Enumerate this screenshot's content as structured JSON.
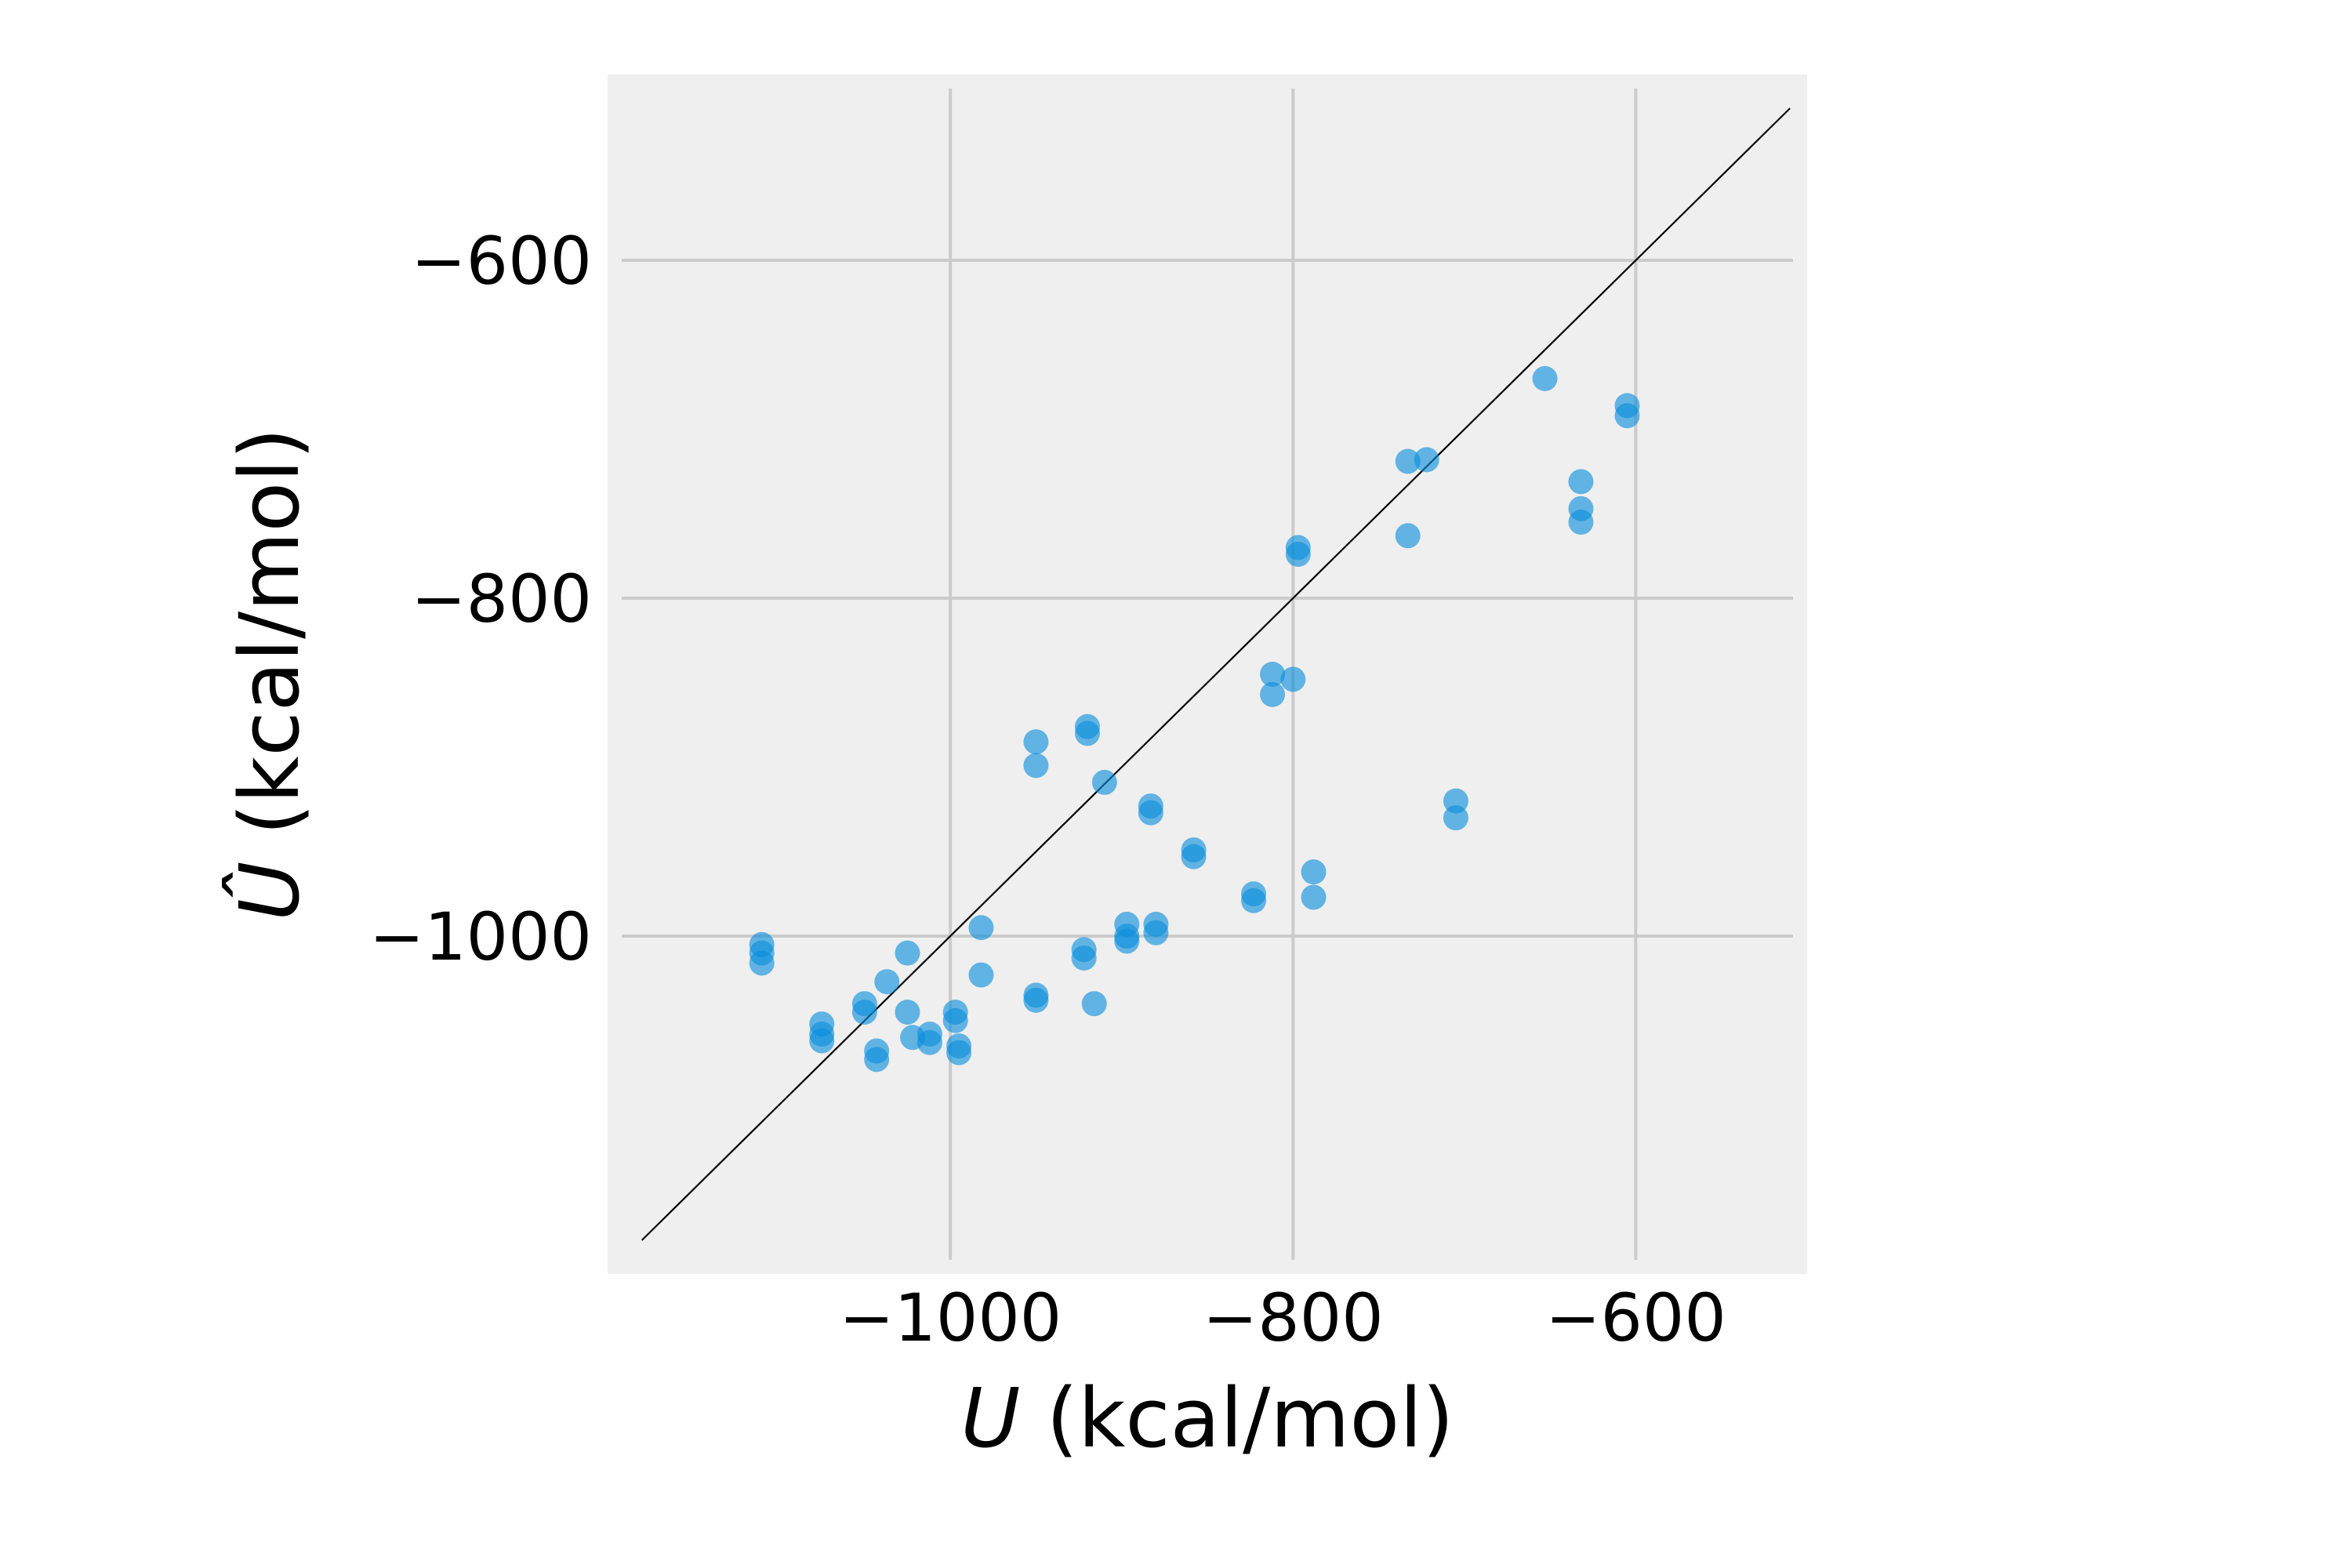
{
  "chart_data": {
    "type": "scatter",
    "xlabel_symbol": "U",
    "xlabel_unit": " (kcal/mol)",
    "ylabel_symbol": "Û",
    "ylabel_unit": " (kcal/mol)",
    "xlim": [
      -1200,
      -500
    ],
    "ylim": [
      -1200,
      -490
    ],
    "xticks": [
      -1000,
      -800,
      -600
    ],
    "yticks": [
      -1000,
      -800,
      -600
    ],
    "xtick_labels": [
      "−1000",
      "−800",
      "−600"
    ],
    "ytick_labels": [
      "−1000",
      "−800",
      "−600"
    ],
    "grid": true,
    "diagonal_reference_line": true,
    "colors": {
      "background": "#efefef",
      "grid": "#cbcbcb",
      "marker": "#0a8edb",
      "diagonal": "#000000"
    },
    "series": [
      {
        "points": [
          [
            -1110,
            -1005
          ],
          [
            -1110,
            -1010
          ],
          [
            -1110,
            -1016
          ],
          [
            -1075,
            -1052
          ],
          [
            -1075,
            -1058
          ],
          [
            -1075,
            -1062
          ],
          [
            -1050,
            -1040
          ],
          [
            -1050,
            -1045
          ],
          [
            -1043,
            -1068
          ],
          [
            -1043,
            -1073
          ],
          [
            -1037,
            -1027
          ],
          [
            -1025,
            -1010
          ],
          [
            -1025,
            -1045
          ],
          [
            -1022,
            -1060
          ],
          [
            -1012,
            -1058
          ],
          [
            -1012,
            -1063
          ],
          [
            -997,
            -1045
          ],
          [
            -997,
            -1050
          ],
          [
            -995,
            -1065
          ],
          [
            -995,
            -1069
          ],
          [
            -982,
            -995
          ],
          [
            -982,
            -1023
          ],
          [
            -950,
            -885
          ],
          [
            -950,
            -899
          ],
          [
            -950,
            -1035
          ],
          [
            -950,
            -1038
          ],
          [
            -920,
            -876
          ],
          [
            -920,
            -880
          ],
          [
            -922,
            -1008
          ],
          [
            -922,
            -1013
          ],
          [
            -916,
            -1040
          ],
          [
            -910,
            -909
          ],
          [
            -897,
            -993
          ],
          [
            -897,
            -1000
          ],
          [
            -897,
            -1003
          ],
          [
            -883,
            -923
          ],
          [
            -883,
            -927
          ],
          [
            -880,
            -993
          ],
          [
            -880,
            -998
          ],
          [
            -858,
            -949
          ],
          [
            -858,
            -953
          ],
          [
            -823,
            -975
          ],
          [
            -823,
            -979
          ],
          [
            -788,
            -962
          ],
          [
            -788,
            -977
          ],
          [
            -812,
            -845
          ],
          [
            -812,
            -857
          ],
          [
            -800,
            -848
          ],
          [
            -797,
            -770
          ],
          [
            -797,
            -774
          ],
          [
            -733,
            -719
          ],
          [
            -733,
            -763
          ],
          [
            -722,
            -718
          ],
          [
            -705,
            -920
          ],
          [
            -705,
            -930
          ],
          [
            -653,
            -670
          ],
          [
            -632,
            -731
          ],
          [
            -632,
            -747
          ],
          [
            -632,
            -755
          ],
          [
            -605,
            -686
          ],
          [
            -605,
            -692
          ]
        ]
      }
    ]
  }
}
